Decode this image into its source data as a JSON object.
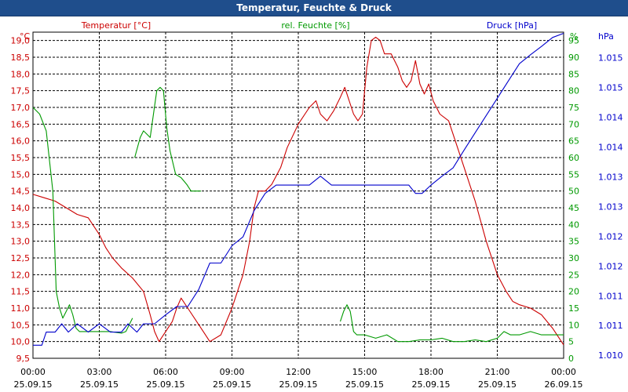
{
  "chart_data": {
    "type": "line",
    "title": "Temperatur, Feuchte & Druck",
    "x_ticks": [
      {
        "time": "00:00",
        "date": "25.09.15"
      },
      {
        "time": "03:00",
        "date": "25.09.15"
      },
      {
        "time": "06:00",
        "date": "25.09.15"
      },
      {
        "time": "09:00",
        "date": "25.09.15"
      },
      {
        "time": "12:00",
        "date": "25.09.15"
      },
      {
        "time": "15:00",
        "date": "25.09.15"
      },
      {
        "time": "18:00",
        "date": "25.09.15"
      },
      {
        "time": "21:00",
        "date": "25.09.15"
      },
      {
        "time": "00:00",
        "date": "26.09.15"
      }
    ],
    "xlim_hours": [
      0,
      24
    ],
    "axes": {
      "temperature": {
        "unit": "°C",
        "label": "Temperatur [°C]",
        "color": "#cc0000",
        "ylim": [
          9.5,
          19.25
        ],
        "ticks": [
          "9,5",
          "10,0",
          "10,5",
          "11,0",
          "11,5",
          "12,0",
          "12,5",
          "13,0",
          "13,5",
          "14,0",
          "14,5",
          "15,0",
          "15,5",
          "16,0",
          "16,5",
          "17,0",
          "17,5",
          "18,0",
          "18,5",
          "19,0"
        ]
      },
      "humidity": {
        "unit": "%",
        "label": "rel. Feuchte [%]",
        "color": "#009900",
        "ylim": [
          0,
          97.5
        ],
        "ticks": [
          "0",
          "5",
          "10",
          "15",
          "20",
          "25",
          "30",
          "35",
          "40",
          "45",
          "50",
          "55",
          "60",
          "65",
          "70",
          "75",
          "80",
          "85",
          "90",
          "95"
        ]
      },
      "pressure": {
        "unit": "hPa",
        "label": "Druck [hPa]",
        "color": "#0000cc",
        "ylim": [
          1010.0,
          1015.48
        ],
        "ticks": [
          "1.010",
          "1.011",
          "1.011",
          "1.012",
          "1.012",
          "1.013",
          "1.013",
          "1.014",
          "1.014",
          "1.015",
          "1.015"
        ]
      }
    },
    "series": [
      {
        "name": "Temperatur",
        "axis": "temperature",
        "points": [
          [
            0,
            14.4
          ],
          [
            0.5,
            14.3
          ],
          [
            1,
            14.2
          ],
          [
            1.5,
            14.0
          ],
          [
            2,
            13.8
          ],
          [
            2.5,
            13.7
          ],
          [
            3,
            13.2
          ],
          [
            3.3,
            12.8
          ],
          [
            3.6,
            12.5
          ],
          [
            4,
            12.2
          ],
          [
            4.5,
            11.9
          ],
          [
            5,
            11.5
          ],
          [
            5.3,
            10.8
          ],
          [
            5.5,
            10.3
          ],
          [
            5.7,
            10.0
          ],
          [
            6,
            10.3
          ],
          [
            6.3,
            10.6
          ],
          [
            6.5,
            11.0
          ],
          [
            6.7,
            11.3
          ],
          [
            7,
            11.0
          ],
          [
            7.5,
            10.5
          ],
          [
            7.8,
            10.2
          ],
          [
            8,
            10.0
          ],
          [
            8.5,
            10.2
          ],
          [
            9,
            11.0
          ],
          [
            9.5,
            12.0
          ],
          [
            9.8,
            13.0
          ],
          [
            10,
            14.0
          ],
          [
            10.2,
            14.5
          ],
          [
            10.5,
            14.5
          ],
          [
            10.8,
            14.7
          ],
          [
            11.2,
            15.2
          ],
          [
            11.5,
            15.8
          ],
          [
            12,
            16.5
          ],
          [
            12.5,
            17.0
          ],
          [
            12.8,
            17.2
          ],
          [
            13,
            16.8
          ],
          [
            13.3,
            16.6
          ],
          [
            13.6,
            16.9
          ],
          [
            13.9,
            17.3
          ],
          [
            14.1,
            17.6
          ],
          [
            14.3,
            17.2
          ],
          [
            14.5,
            16.8
          ],
          [
            14.7,
            16.6
          ],
          [
            14.9,
            16.8
          ],
          [
            15.1,
            18.2
          ],
          [
            15.3,
            19.0
          ],
          [
            15.5,
            19.1
          ],
          [
            15.7,
            19.0
          ],
          [
            15.9,
            18.6
          ],
          [
            16.2,
            18.6
          ],
          [
            16.5,
            18.2
          ],
          [
            16.7,
            17.8
          ],
          [
            16.9,
            17.6
          ],
          [
            17.1,
            17.8
          ],
          [
            17.3,
            18.4
          ],
          [
            17.5,
            17.7
          ],
          [
            17.7,
            17.4
          ],
          [
            17.9,
            17.7
          ],
          [
            18.1,
            17.2
          ],
          [
            18.4,
            16.8
          ],
          [
            18.8,
            16.6
          ],
          [
            19.1,
            16.0
          ],
          [
            19.5,
            15.2
          ],
          [
            20,
            14.2
          ],
          [
            20.5,
            13.0
          ],
          [
            21,
            12.0
          ],
          [
            21.4,
            11.5
          ],
          [
            21.7,
            11.2
          ],
          [
            22,
            11.1
          ],
          [
            22.5,
            11.0
          ],
          [
            23,
            10.8
          ],
          [
            23.5,
            10.4
          ],
          [
            24,
            9.9
          ]
        ]
      },
      {
        "name": "rel. Feuchte",
        "axis": "humidity",
        "segments": [
          [
            [
              0,
              75
            ],
            [
              0.3,
              73
            ],
            [
              0.6,
              68
            ],
            [
              0.9,
              50
            ],
            [
              1.05,
              20
            ],
            [
              1.2,
              15
            ],
            [
              1.35,
              12
            ],
            [
              1.5,
              14
            ],
            [
              1.65,
              16
            ],
            [
              1.8,
              13
            ],
            [
              1.95,
              9
            ],
            [
              2.1,
              8
            ],
            [
              2.5,
              8
            ],
            [
              3,
              8
            ],
            [
              3.5,
              8
            ],
            [
              4,
              7.5
            ],
            [
              4.2,
              8
            ],
            [
              4.5,
              12
            ]
          ],
          [
            [
              4.6,
              60
            ],
            [
              4.85,
              66
            ],
            [
              5,
              68
            ],
            [
              5.15,
              67
            ],
            [
              5.3,
              66
            ],
            [
              5.45,
              73
            ],
            [
              5.6,
              80
            ],
            [
              5.75,
              81
            ],
            [
              5.9,
              80
            ],
            [
              6.05,
              69
            ],
            [
              6.2,
              62
            ],
            [
              6.45,
              55
            ],
            [
              6.7,
              54
            ],
            [
              6.95,
              52
            ],
            [
              7.15,
              50
            ],
            [
              7.4,
              50
            ],
            [
              7.6,
              50
            ]
          ],
          [
            [
              13.9,
              11
            ],
            [
              14.05,
              14
            ],
            [
              14.2,
              16
            ],
            [
              14.35,
              14
            ],
            [
              14.5,
              8
            ],
            [
              14.65,
              7
            ],
            [
              15,
              7
            ],
            [
              15.5,
              6
            ],
            [
              16,
              7
            ],
            [
              16.5,
              5
            ],
            [
              17,
              5
            ],
            [
              17.5,
              5.5
            ],
            [
              18,
              5.5
            ],
            [
              18.5,
              6
            ],
            [
              19,
              5
            ],
            [
              19.5,
              5
            ],
            [
              20,
              5.5
            ],
            [
              20.5,
              5
            ],
            [
              21,
              6
            ],
            [
              21.3,
              8
            ],
            [
              21.6,
              7
            ],
            [
              22,
              7
            ],
            [
              22.5,
              8
            ],
            [
              23,
              7
            ],
            [
              23.5,
              7
            ],
            [
              24,
              7
            ]
          ]
        ]
      },
      {
        "name": "Druck",
        "axis": "pressure",
        "points": [
          [
            0,
            1010.22
          ],
          [
            0.4,
            1010.22
          ],
          [
            0.6,
            1010.44
          ],
          [
            1,
            1010.44
          ],
          [
            1.3,
            1010.58
          ],
          [
            1.6,
            1010.44
          ],
          [
            2,
            1010.58
          ],
          [
            2.5,
            1010.44
          ],
          [
            3,
            1010.58
          ],
          [
            3.5,
            1010.44
          ],
          [
            4,
            1010.44
          ],
          [
            4.3,
            1010.58
          ],
          [
            4.7,
            1010.44
          ],
          [
            5,
            1010.58
          ],
          [
            5.5,
            1010.58
          ],
          [
            6,
            1010.73
          ],
          [
            6.5,
            1010.87
          ],
          [
            7,
            1010.87
          ],
          [
            7.5,
            1011.16
          ],
          [
            8,
            1011.6
          ],
          [
            8.5,
            1011.6
          ],
          [
            9,
            1011.89
          ],
          [
            9.5,
            1012.04
          ],
          [
            10,
            1012.48
          ],
          [
            10.5,
            1012.77
          ],
          [
            11,
            1012.91
          ],
          [
            11.5,
            1012.91
          ],
          [
            12,
            1012.91
          ],
          [
            12.5,
            1012.91
          ],
          [
            13,
            1013.06
          ],
          [
            13.5,
            1012.91
          ],
          [
            14,
            1012.91
          ],
          [
            14.5,
            1012.91
          ],
          [
            15,
            1012.91
          ],
          [
            15.5,
            1012.91
          ],
          [
            16,
            1012.91
          ],
          [
            16.5,
            1012.91
          ],
          [
            17,
            1012.91
          ],
          [
            17.3,
            1012.77
          ],
          [
            17.6,
            1012.77
          ],
          [
            18,
            1012.91
          ],
          [
            18.5,
            1013.06
          ],
          [
            19,
            1013.2
          ],
          [
            19.5,
            1013.5
          ],
          [
            20,
            1013.79
          ],
          [
            20.5,
            1014.08
          ],
          [
            21,
            1014.37
          ],
          [
            21.5,
            1014.66
          ],
          [
            22,
            1014.95
          ],
          [
            22.5,
            1015.1
          ],
          [
            23,
            1015.24
          ],
          [
            23.5,
            1015.39
          ],
          [
            24,
            1015.46
          ]
        ]
      }
    ]
  }
}
